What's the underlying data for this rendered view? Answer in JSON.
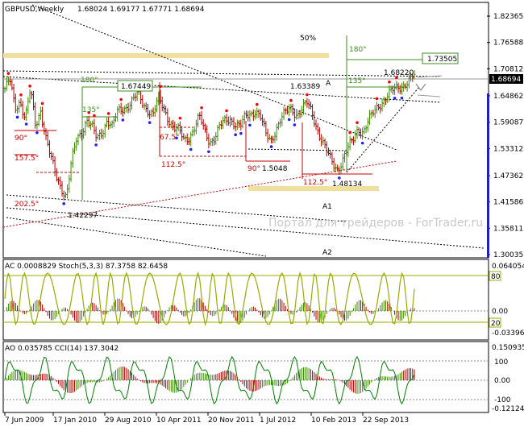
{
  "header": {
    "symbol": "GBPUSD,Weekly",
    "ohlc": "1.68024 1.69177 1.67771 1.68694"
  },
  "price_axis": {
    "ticks": [
      "1.82365",
      "1.76588",
      "1.70812",
      "1.64862",
      "1.59087",
      "1.53312",
      "1.47362",
      "1.41586",
      "1.35811",
      "1.30035"
    ],
    "current_price": "1.68694"
  },
  "time_axis": [
    "7 Jun 2009",
    "17 Jan 2010",
    "29 Aug 2010",
    "10 Apr 2011",
    "20 Nov 2011",
    "1 Jul 2012",
    "10 Feb 2013",
    "22 Sep 2013"
  ],
  "annotations": {
    "pct50": "50%",
    "label_180": "180°",
    "target_boxed": "1.73505",
    "level_168220": "1.68220",
    "label_A": "A",
    "level_163389": "1.63389",
    "label_135_right": "135°",
    "label_180_left": "180°",
    "boxed_167449": "1.67449",
    "label_135_left": "135°",
    "label_90_left": "90°",
    "label_1575": "157.5°",
    "label_675": "67.5°",
    "label_1125_left": "112.5°",
    "label_90_mid": "90°",
    "level_15048": "1.5048",
    "label_1125_mid": "112.5°",
    "level_148134": "1.48134",
    "label_2025": "202.5°",
    "level_142297": "1.42297",
    "label_A1": "A1",
    "label_A2": "A2",
    "watermark": "Портал для трейдеров - ForTrader.ru"
  },
  "ac_panel": {
    "header": "AC 0.0008829  Stoch(5,3,3) 87.3758 82.6458",
    "ticks": [
      "0.064054",
      "0.00",
      "-0.033963"
    ],
    "level_80": "80",
    "level_20": "20"
  },
  "ao_panel": {
    "header": "AO 0.035785  CCI(14) 137.3042",
    "ticks": [
      "0.150935",
      "100",
      "0.00",
      "-100",
      "-0.121241"
    ]
  },
  "colors": {
    "bull_bar": "#3a8a00",
    "bear_bar": "#b00000",
    "fractal_up": "#ff0000",
    "fractal_down": "#2020ff",
    "stoch": "#9aab00",
    "cci": "#008000",
    "zone": "#f0e0a0",
    "green_line": "#3c8c1c",
    "red_line": "#cc0000"
  },
  "chart_data": {
    "type": "ohlc",
    "title": "GBPUSD,Weekly",
    "ylim": [
      1.295,
      1.845
    ],
    "x": [
      "7 Jun 2009",
      "17 Jan 2010",
      "29 Aug 2010",
      "10 Apr 2011",
      "20 Nov 2011",
      "1 Jul 2012",
      "10 Feb 2013",
      "22 Sep 2013"
    ],
    "close_path": [
      1.665,
      1.68,
      1.62,
      1.64,
      1.6,
      1.66,
      1.58,
      1.62,
      1.56,
      1.51,
      1.47,
      1.45,
      1.43,
      1.5,
      1.55,
      1.57,
      1.6,
      1.58,
      1.55,
      1.57,
      1.6,
      1.58,
      1.61,
      1.62,
      1.63,
      1.64,
      1.65,
      1.63,
      1.62,
      1.61,
      1.64,
      1.62,
      1.6,
      1.58,
      1.57,
      1.55,
      1.56,
      1.58,
      1.6,
      1.57,
      1.55,
      1.56,
      1.58,
      1.59,
      1.6,
      1.59,
      1.58,
      1.6,
      1.61,
      1.62,
      1.6,
      1.56,
      1.55,
      1.58,
      1.6,
      1.61,
      1.62,
      1.61,
      1.62,
      1.63,
      1.61,
      1.58,
      1.55,
      1.52,
      1.5,
      1.49,
      1.51,
      1.53,
      1.55,
      1.58,
      1.57,
      1.59,
      1.61,
      1.63,
      1.64,
      1.65,
      1.66,
      1.67,
      1.675,
      1.68,
      1.69
    ],
    "last": {
      "open": 1.68024,
      "high": 1.69177,
      "low": 1.67771,
      "close": 1.68694
    }
  }
}
